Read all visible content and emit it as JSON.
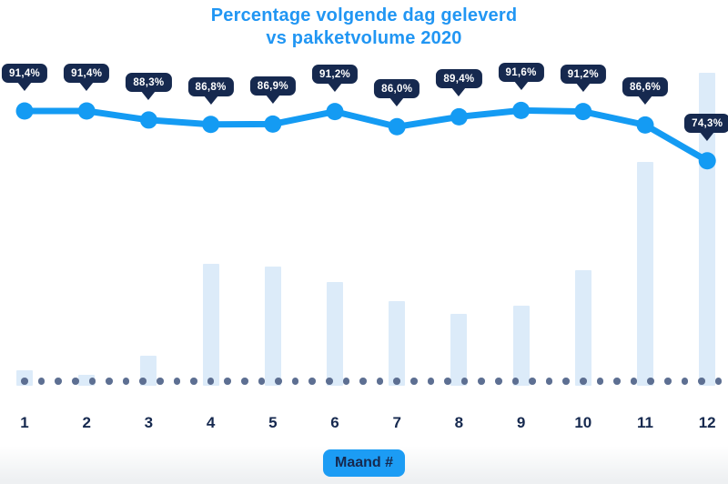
{
  "title": {
    "line1": "Percentage volgende dag geleverd",
    "line2": "vs pakketvolume 2020",
    "color": "#2196F3"
  },
  "xlabel": {
    "text": "Maand #",
    "bg": "#1C9CF4",
    "text_color": "#16294F"
  },
  "colors": {
    "line": "#149BF3",
    "marker": "#149BF3",
    "callout_bg": "#16294F",
    "callout_text": "#FFFFFF",
    "bar": "#DCEBF9",
    "baseline_dot": "#5D6F92",
    "axis_label": "#16294F",
    "title": "#2196F3"
  },
  "chart_data": {
    "type": [
      "line",
      "bar"
    ],
    "title": "Percentage volgende dag geleverd vs pakketvolume 2020",
    "categories": [
      "1",
      "2",
      "3",
      "4",
      "5",
      "6",
      "7",
      "8",
      "9",
      "10",
      "11",
      "12"
    ],
    "xlabel": "Maand #",
    "legend": "none",
    "grid": "off",
    "baseline_style": "dotted",
    "series": [
      {
        "name": "Percentage volgende dag geleverd",
        "type": "line",
        "unit": "%",
        "values": [
          91.4,
          91.4,
          88.3,
          86.8,
          86.9,
          91.2,
          86.0,
          89.4,
          91.6,
          91.2,
          86.6,
          74.3
        ],
        "labels": [
          "91,4%",
          "91,4%",
          "88,3%",
          "86,8%",
          "86,9%",
          "91,2%",
          "86,0%",
          "89,4%",
          "91,6%",
          "91,2%",
          "86,6%",
          "74,3%"
        ]
      },
      {
        "name": "Pakketvolume 2020",
        "type": "bar",
        "unit": "relative volume, % of December max (estimated from bar heights, no y-axis shown)",
        "values": [
          5,
          3.5,
          9.5,
          39,
          38,
          33,
          27,
          23,
          25.5,
          37,
          71.5,
          100
        ]
      }
    ]
  }
}
